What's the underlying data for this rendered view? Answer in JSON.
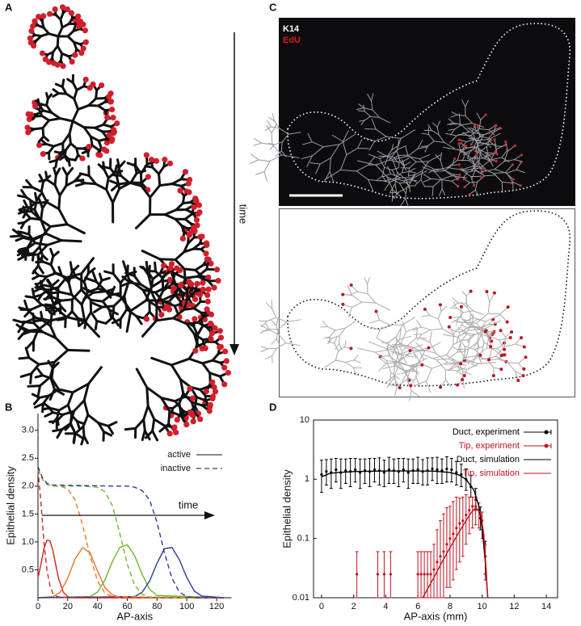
{
  "panel_a": {
    "panel": "A",
    "arrow_label": "time"
  },
  "panel_c": {
    "panel": "C",
    "labels": [
      "K14",
      "EdU"
    ]
  },
  "chart_data": [
    {
      "type": "line",
      "panel": "B",
      "box": false,
      "log_y": false,
      "xlabel": "AP-axis",
      "ylabel": "Epithelial density",
      "xlim": [
        0,
        130
      ],
      "ylim": [
        0,
        3.3
      ],
      "xticks": [
        0,
        20,
        40,
        60,
        80,
        100,
        120
      ],
      "yticks": [
        0.5,
        {
          "value": 1.0,
          "label": "1.0"
        },
        1.5,
        {
          "value": 2.0,
          "label": "2.0"
        },
        2.5,
        {
          "value": 3.0,
          "label": "3.0"
        }
      ],
      "legend": [
        {
          "label": "active",
          "dash": false
        },
        {
          "label": "inactive",
          "dash": true
        }
      ],
      "annotation": "time",
      "series": [
        {
          "color": "#d7261e",
          "dash": false,
          "x": [
            0,
            2,
            4,
            6,
            8,
            10,
            12,
            14,
            17,
            20,
            25,
            125
          ],
          "values": [
            0.35,
            0.6,
            0.88,
            1.03,
            1.02,
            0.85,
            0.58,
            0.33,
            0.1,
            0.02,
            0,
            0
          ]
        },
        {
          "color": "#e87722",
          "dash": false,
          "x": [
            0,
            10,
            15,
            20,
            25,
            30,
            35,
            40,
            45,
            50,
            55,
            125
          ],
          "values": [
            0,
            0.02,
            0.1,
            0.35,
            0.7,
            0.9,
            0.8,
            0.48,
            0.18,
            0.05,
            0.01,
            0
          ]
        },
        {
          "color": "#6ab82e",
          "dash": false,
          "x": [
            0,
            35,
            40,
            45,
            50,
            55,
            60,
            65,
            70,
            75,
            80,
            125
          ],
          "values": [
            0,
            0.02,
            0.1,
            0.32,
            0.65,
            0.9,
            0.95,
            0.75,
            0.42,
            0.15,
            0.04,
            0
          ]
        },
        {
          "color": "#2b3a9a",
          "dash": false,
          "x": [
            0,
            65,
            70,
            75,
            80,
            85,
            90,
            95,
            100,
            105,
            110,
            125
          ],
          "values": [
            0,
            0.02,
            0.1,
            0.3,
            0.62,
            0.88,
            0.9,
            0.68,
            0.36,
            0.12,
            0.03,
            0
          ]
        },
        {
          "color": "#d7261e",
          "dash": true,
          "x": [
            0,
            2,
            4,
            6,
            8,
            10,
            12,
            15,
            20,
            125
          ],
          "values": [
            2.3,
            1.7,
            1.0,
            0.5,
            0.22,
            0.08,
            0.03,
            0.01,
            0,
            0
          ]
        },
        {
          "color": "#e87722",
          "dash": true,
          "x": [
            0,
            3,
            6,
            10,
            15,
            20,
            25,
            30,
            35,
            40,
            45,
            50,
            125
          ],
          "values": [
            2.3,
            2.12,
            2.03,
            2.0,
            2.0,
            1.95,
            1.75,
            1.3,
            0.75,
            0.3,
            0.08,
            0.02,
            0
          ]
        },
        {
          "color": "#6ab82e",
          "dash": true,
          "x": [
            0,
            3,
            6,
            10,
            30,
            40,
            45,
            50,
            55,
            60,
            65,
            70,
            75,
            125
          ],
          "values": [
            2.3,
            2.12,
            2.03,
            2.0,
            2.0,
            1.98,
            1.9,
            1.65,
            1.15,
            0.6,
            0.22,
            0.06,
            0.01,
            0
          ]
        },
        {
          "color": "#2b3a9a",
          "dash": true,
          "x": [
            0,
            3,
            6,
            10,
            50,
            60,
            65,
            70,
            75,
            80,
            85,
            90,
            95,
            100,
            105,
            125
          ],
          "values": [
            2.35,
            2.15,
            2.05,
            2.02,
            2.0,
            2.0,
            1.98,
            1.92,
            1.75,
            1.35,
            0.8,
            0.35,
            0.1,
            0.02,
            0,
            0
          ]
        }
      ]
    },
    {
      "type": "line",
      "panel": "D",
      "box": true,
      "log_y": true,
      "xlabel": "AP-axis (mm)",
      "ylabel": "Epithelial density",
      "xlim": [
        -0.5,
        14.7
      ],
      "ylim": [
        0.01,
        10
      ],
      "xticks": [
        0,
        2,
        4,
        6,
        8,
        10,
        12,
        14
      ],
      "yticks": [
        0.01,
        0.1,
        1,
        10
      ],
      "series": [
        {
          "name": "Duct, experiment",
          "color": "#000000",
          "style": "points",
          "x": [
            0,
            0.3,
            0.6,
            0.9,
            1.2,
            1.5,
            1.8,
            2.1,
            2.4,
            2.7,
            3.0,
            3.3,
            3.6,
            3.9,
            4.2,
            4.5,
            4.8,
            5.1,
            5.4,
            5.7,
            6.0,
            6.3,
            6.6,
            6.9,
            7.2,
            7.5,
            7.8,
            8.1,
            8.4,
            8.7,
            9.0,
            9.3,
            9.6,
            9.9,
            10.2
          ],
          "values": [
            1.2,
            1.35,
            1.3,
            1.45,
            1.3,
            1.4,
            1.35,
            1.45,
            1.3,
            1.4,
            1.35,
            1.45,
            1.4,
            1.3,
            1.45,
            1.4,
            1.35,
            1.45,
            1.3,
            1.4,
            1.45,
            1.35,
            1.4,
            1.5,
            1.45,
            1.4,
            1.5,
            1.45,
            1.3,
            1.2,
            1.0,
            0.75,
            0.45,
            0.22,
            0.05
          ],
          "err_low": [
            0.6,
            0.55,
            0.6,
            0.55,
            0.6,
            0.55,
            0.6,
            0.55,
            0.6,
            0.55,
            0.6,
            0.55,
            0.6,
            0.55,
            0.6,
            0.55,
            0.6,
            0.55,
            0.6,
            0.55,
            0.6,
            0.55,
            0.6,
            0.55,
            0.6,
            0.55,
            0.6,
            0.55,
            0.5,
            0.45,
            0.35,
            0.25,
            0.15,
            0.08,
            0.025
          ],
          "err_high": [
            0.9,
            0.8,
            0.9,
            0.8,
            0.9,
            0.8,
            0.9,
            0.8,
            0.9,
            0.8,
            0.9,
            0.8,
            0.9,
            0.8,
            0.9,
            0.8,
            0.9,
            0.8,
            0.9,
            0.8,
            0.9,
            0.8,
            0.9,
            0.8,
            0.9,
            0.8,
            0.9,
            0.8,
            0.7,
            0.6,
            0.5,
            0.4,
            0.25,
            0.12,
            0.04
          ]
        },
        {
          "name": "Tip, experiment",
          "color": "#c1121f",
          "style": "points",
          "x": [
            2.2,
            3.5,
            3.9,
            4.3,
            6.0,
            6.2,
            6.4,
            6.6,
            6.8,
            7.0,
            7.2,
            7.4,
            7.6,
            7.8,
            8.0,
            8.2,
            8.4,
            8.6,
            8.8,
            9.0,
            9.2,
            9.4,
            9.6,
            9.8,
            10.0,
            10.2
          ],
          "values": [
            0.025,
            0.025,
            0.025,
            0.025,
            0.025,
            0.025,
            0.025,
            0.025,
            0.025,
            0.03,
            0.04,
            0.05,
            0.06,
            0.08,
            0.1,
            0.12,
            0.15,
            0.18,
            0.2,
            0.25,
            0.3,
            0.35,
            0.35,
            0.3,
            0.2,
            0.05
          ],
          "err_low": [
            0.015,
            0.015,
            0.015,
            0.015,
            0.015,
            0.015,
            0.015,
            0.015,
            0.015,
            0.02,
            0.03,
            0.04,
            0.05,
            0.065,
            0.085,
            0.1,
            0.12,
            0.14,
            0.15,
            0.17,
            0.18,
            0.2,
            0.18,
            0.15,
            0.1,
            0.03
          ],
          "err_high": [
            0.035,
            0.035,
            0.035,
            0.035,
            0.035,
            0.035,
            0.035,
            0.035,
            0.035,
            0.05,
            0.1,
            0.15,
            0.2,
            0.25,
            0.25,
            0.3,
            0.35,
            0.3,
            0.3,
            0.3,
            0.2,
            0.15,
            0.15,
            0.1,
            0.08,
            0.03
          ]
        },
        {
          "name": "Duct, simulation",
          "color": "#000000",
          "style": "line",
          "x": [
            0,
            0.5,
            1,
            2,
            4,
            6,
            7,
            8,
            8.5,
            9,
            9.5,
            9.8,
            10.0,
            10.2,
            10.35
          ],
          "values": [
            1.1,
            1.25,
            1.3,
            1.35,
            1.38,
            1.38,
            1.37,
            1.3,
            1.2,
            1.0,
            0.65,
            0.35,
            0.15,
            0.04,
            0.01
          ]
        },
        {
          "name": "Tip, simulation",
          "color": "#c1121f",
          "style": "line",
          "x": [
            6.3,
            7,
            7.5,
            8,
            8.5,
            9,
            9.3,
            9.6,
            9.9,
            10.1,
            10.25,
            10.35
          ],
          "values": [
            0.01,
            0.022,
            0.04,
            0.07,
            0.12,
            0.2,
            0.27,
            0.33,
            0.28,
            0.12,
            0.03,
            0.01
          ]
        }
      ]
    }
  ]
}
